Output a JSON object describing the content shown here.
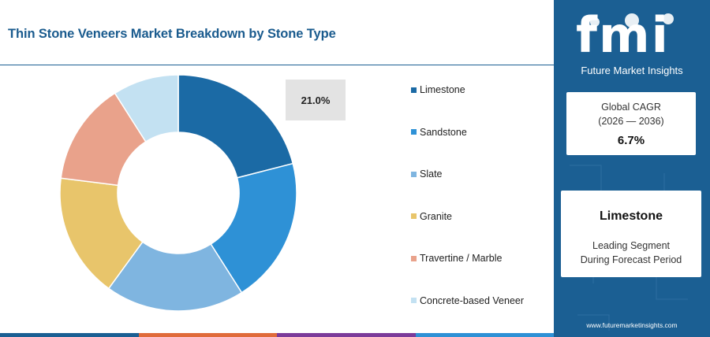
{
  "title": "Thin Stone Veneers Market Breakdown by Stone Type",
  "chart_data": {
    "type": "donut",
    "categories": [
      "Limestone",
      "Sandstone",
      "Slate",
      "Granite",
      "Travertine / Marble",
      "Concrete-based Veneer"
    ],
    "values": [
      21.0,
      20.0,
      19.0,
      17.0,
      14.0,
      9.0
    ],
    "colors": [
      "#1b6aa5",
      "#2e91d6",
      "#7fb5e0",
      "#e8c56b",
      "#e9a28b",
      "#c3e1f2"
    ],
    "highlight_label": "21.0%"
  },
  "legend": [
    {
      "label": "Limestone",
      "color": "#1b6aa5"
    },
    {
      "label": "Sandstone",
      "color": "#2e91d6"
    },
    {
      "label": "Slate",
      "color": "#7fb5e0"
    },
    {
      "label": "Granite",
      "color": "#e8c56b"
    },
    {
      "label": "Travertine / Marble",
      "color": "#e9a28b"
    },
    {
      "label": "Concrete-based Veneer",
      "color": "#c3e1f2"
    }
  ],
  "side": {
    "logo": "fmi",
    "logo_subtitle": "Future Market Insights",
    "cagr_label": "Global CAGR",
    "cagr_period": "(2026 — 2036)",
    "cagr_value": "6.7%",
    "segment_name": "Limestone",
    "segment_line1": "Leading Segment",
    "segment_line2": "During Forecast Period",
    "url": "www.futuremarketinsights.com"
  },
  "stripe_colors": [
    "#1b5f93",
    "#e06b3a",
    "#7b3b9a",
    "#2e91d6"
  ]
}
